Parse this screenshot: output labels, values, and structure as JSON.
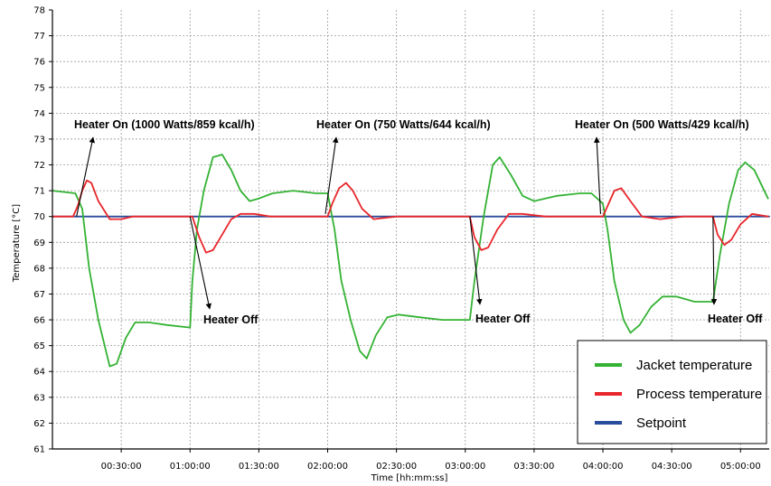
{
  "chart_data": {
    "type": "line",
    "title": "",
    "xlabel": "Time [hh:mm:ss]",
    "ylabel": "Temperature [°C]",
    "ylim": [
      61,
      78
    ],
    "xlim": [
      "00:00:00",
      "05:12:30"
    ],
    "yticks": [
      61,
      62,
      63,
      64,
      65,
      66,
      67,
      68,
      69,
      70,
      71,
      72,
      73,
      74,
      75,
      76,
      77,
      78
    ],
    "xticks": [
      "00:30:00",
      "01:00:00",
      "01:30:00",
      "02:00:00",
      "02:30:00",
      "03:00:00",
      "03:30:00",
      "04:00:00",
      "04:30:00",
      "05:00:00"
    ],
    "grid": true,
    "legend_position": "bottom-right",
    "series": [
      {
        "name": "Jacket temperature",
        "color": "#33b233",
        "x": [
          "00:00:00",
          "00:10:00",
          "00:13:00",
          "00:16:00",
          "00:20:00",
          "00:25:00",
          "00:28:00",
          "00:32:00",
          "00:36:00",
          "00:42:00",
          "00:50:00",
          "01:00:00",
          "01:01:00",
          "01:03:00",
          "01:06:00",
          "01:10:00",
          "01:14:00",
          "01:18:00",
          "01:22:00",
          "01:26:00",
          "01:30:00",
          "01:36:00",
          "01:45:00",
          "01:55:00",
          "02:00:00",
          "02:03:00",
          "02:06:00",
          "02:10:00",
          "02:14:00",
          "02:17:00",
          "02:21:00",
          "02:26:00",
          "02:31:00",
          "02:40:00",
          "02:50:00",
          "03:02:00",
          "03:04:00",
          "03:08:00",
          "03:12:00",
          "03:15:00",
          "03:20:00",
          "03:25:00",
          "03:30:00",
          "03:40:00",
          "03:50:00",
          "03:55:00",
          "04:00:00",
          "04:02:00",
          "04:05:00",
          "04:09:00",
          "04:12:00",
          "04:16:00",
          "04:21:00",
          "04:26:00",
          "04:32:00",
          "04:40:00",
          "04:48:00",
          "04:51:00",
          "04:55:00",
          "04:59:00",
          "05:02:00",
          "05:06:00",
          "05:12:00"
        ],
        "values": [
          71.0,
          70.9,
          70.3,
          68.0,
          66.0,
          64.2,
          64.3,
          65.3,
          65.9,
          65.9,
          65.8,
          65.7,
          67.5,
          69.5,
          71.0,
          72.3,
          72.4,
          71.8,
          71.0,
          70.6,
          70.7,
          70.9,
          71.0,
          70.9,
          70.9,
          69.5,
          67.5,
          66.0,
          64.8,
          64.5,
          65.4,
          66.1,
          66.2,
          66.1,
          66.0,
          66.0,
          67.5,
          70.0,
          72.0,
          72.3,
          71.6,
          70.8,
          70.6,
          70.8,
          70.9,
          70.9,
          70.5,
          69.5,
          67.5,
          66.0,
          65.5,
          65.8,
          66.5,
          66.9,
          66.9,
          66.7,
          66.7,
          68.5,
          70.5,
          71.8,
          72.1,
          71.8,
          70.7
        ]
      },
      {
        "name": "Process temperature",
        "color": "#e8262b",
        "x": [
          "00:00:00",
          "00:09:00",
          "00:11:00",
          "00:13:00",
          "00:15:00",
          "00:17:00",
          "00:20:00",
          "00:25:00",
          "00:30:00",
          "00:35:00",
          "00:45:00",
          "01:01:00",
          "01:04:00",
          "01:07:00",
          "01:10:00",
          "01:14:00",
          "01:18:00",
          "01:22:00",
          "01:28:00",
          "01:35:00",
          "01:45:00",
          "01:58:00",
          "02:00:00",
          "02:02:00",
          "02:05:00",
          "02:08:00",
          "02:11:00",
          "02:15:00",
          "02:20:00",
          "02:30:00",
          "02:40:00",
          "03:02:00",
          "03:04:00",
          "03:07:00",
          "03:10:00",
          "03:14:00",
          "03:19:00",
          "03:25:00",
          "03:35:00",
          "03:50:00",
          "04:00:00",
          "04:02:00",
          "04:05:00",
          "04:08:00",
          "04:12:00",
          "04:17:00",
          "04:25:00",
          "04:35:00",
          "04:48:00",
          "04:50:00",
          "04:53:00",
          "04:56:00",
          "05:00:00",
          "05:05:00",
          "05:12:00"
        ],
        "values": [
          70.0,
          70.0,
          70.4,
          71.0,
          71.4,
          71.3,
          70.6,
          69.9,
          69.9,
          70.0,
          70.0,
          70.0,
          69.2,
          68.6,
          68.7,
          69.3,
          69.9,
          70.1,
          70.1,
          70.0,
          70.0,
          70.0,
          70.0,
          70.5,
          71.1,
          71.3,
          71.0,
          70.3,
          69.9,
          70.0,
          70.0,
          70.0,
          69.2,
          68.7,
          68.8,
          69.5,
          70.1,
          70.1,
          70.0,
          70.0,
          70.0,
          70.4,
          71.0,
          71.1,
          70.6,
          70.0,
          69.9,
          70.0,
          70.0,
          69.3,
          68.9,
          69.1,
          69.7,
          70.1,
          70.0
        ]
      },
      {
        "name": "Setpoint",
        "color": "#2a4c9c",
        "x": [
          "00:00:00",
          "05:12:30"
        ],
        "values": [
          70.0,
          70.0
        ]
      }
    ],
    "annotations": [
      {
        "id": "on1",
        "text": "Heater On (1000 Watts/859 kcal/h)",
        "x": "00:10:30",
        "y": 70.0,
        "arrow_to": "up"
      },
      {
        "id": "on2",
        "text": "Heater On (750 Watts/644 kcal/h)",
        "x": "01:59:00",
        "y": 70.1,
        "arrow_to": "up"
      },
      {
        "id": "on3",
        "text": "Heater On (500 Watts/429 kcal/h)",
        "x": "03:59:00",
        "y": 70.1,
        "arrow_to": "up"
      },
      {
        "id": "off1",
        "text": "Heater Off",
        "x": "01:00:00",
        "y": 70.0,
        "arrow_to": "down"
      },
      {
        "id": "off2",
        "text": "Heater Off",
        "x": "03:02:00",
        "y": 70.0,
        "arrow_to": "down"
      },
      {
        "id": "off3",
        "text": "Heater Off",
        "x": "04:48:00",
        "y": 70.0,
        "arrow_to": "down"
      }
    ]
  }
}
